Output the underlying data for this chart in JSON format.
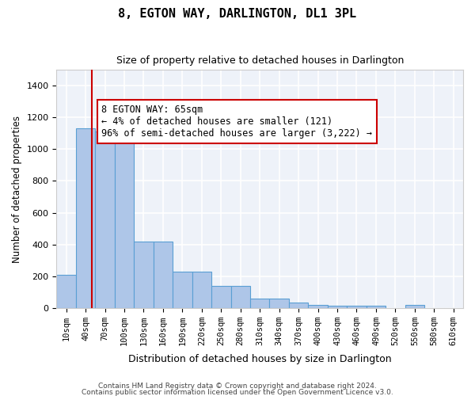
{
  "title": "8, EGTON WAY, DARLINGTON, DL1 3PL",
  "subtitle": "Size of property relative to detached houses in Darlington",
  "xlabel": "Distribution of detached houses by size in Darlington",
  "ylabel": "Number of detached properties",
  "bar_color": "#aec6e8",
  "bar_edge_color": "#5a9fd4",
  "bg_color": "#eef2f9",
  "grid_color": "#ffffff",
  "annotation_text": "8 EGTON WAY: 65sqm\n← 4% of detached houses are smaller (121)\n96% of semi-detached houses are larger (3,222) →",
  "vline_x": 65,
  "vline_color": "#cc0000",
  "categories": [
    "10sqm",
    "40sqm",
    "70sqm",
    "100sqm",
    "130sqm",
    "160sqm",
    "190sqm",
    "220sqm",
    "250sqm",
    "280sqm",
    "310sqm",
    "340sqm",
    "370sqm",
    "400sqm",
    "430sqm",
    "460sqm",
    "490sqm",
    "520sqm",
    "550sqm",
    "580sqm",
    "610sqm"
  ],
  "bin_edges": [
    10,
    40,
    70,
    100,
    130,
    160,
    190,
    220,
    250,
    280,
    310,
    340,
    370,
    400,
    430,
    460,
    490,
    520,
    550,
    580,
    610
  ],
  "values": [
    210,
    1130,
    1110,
    1110,
    420,
    420,
    230,
    230,
    140,
    140,
    60,
    60,
    35,
    20,
    12,
    12,
    12,
    0,
    20,
    0,
    0
  ],
  "ylim": [
    0,
    1500
  ],
  "yticks": [
    0,
    200,
    400,
    600,
    800,
    1000,
    1200,
    1400
  ],
  "footer1": "Contains HM Land Registry data © Crown copyright and database right 2024.",
  "footer2": "Contains public sector information licensed under the Open Government Licence v3.0."
}
